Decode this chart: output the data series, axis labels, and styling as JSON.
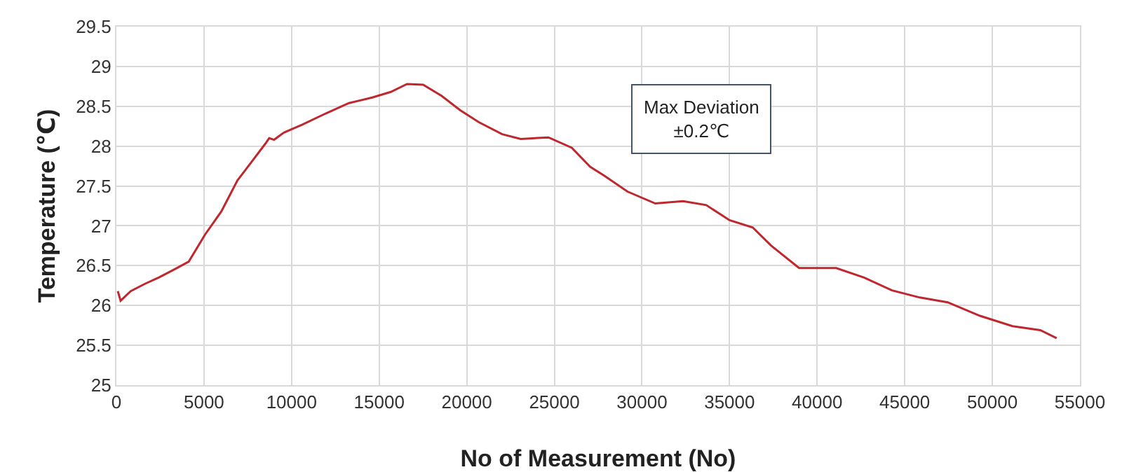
{
  "chart_data": {
    "type": "line",
    "xlabel": "No of Measurement (No)",
    "ylabel": "Temperature (℃)",
    "annotations": [
      "Max Deviation\n±0.2℃"
    ],
    "series": [
      {
        "color": "#c0272d",
        "x": [
          80,
          240,
          820,
          1610,
          2410,
          3200,
          4130,
          5060,
          5990,
          6910,
          7710,
          8500,
          8720,
          9000,
          9560,
          10620,
          11950,
          13270,
          14600,
          15660,
          16590,
          17510,
          18570,
          19630,
          20690,
          22020,
          23080,
          24660,
          25990,
          27050,
          27840,
          29170,
          30760,
          32350,
          33670,
          35000,
          36320,
          37380,
          38970,
          41090,
          42680,
          44270,
          45860,
          47450,
          49300,
          51150,
          52740,
          53670
        ],
        "values": [
          26.18,
          26.06,
          26.18,
          26.27,
          26.35,
          26.44,
          26.55,
          26.89,
          27.18,
          27.57,
          27.8,
          28.03,
          28.1,
          28.08,
          28.17,
          28.27,
          28.41,
          28.54,
          28.61,
          28.68,
          28.78,
          28.77,
          28.63,
          28.45,
          28.3,
          28.15,
          28.09,
          28.11,
          27.98,
          27.74,
          27.63,
          27.43,
          27.28,
          27.31,
          27.26,
          27.07,
          26.98,
          26.75,
          26.47,
          26.47,
          26.35,
          26.19,
          26.1,
          26.04,
          25.87,
          25.74,
          25.69,
          25.59
        ]
      }
    ],
    "xlim": [
      0,
      55000
    ],
    "xticks": [
      0,
      5000,
      10000,
      15000,
      20000,
      25000,
      30000,
      35000,
      40000,
      45000,
      50000,
      55000
    ],
    "ylim": [
      25,
      29.5
    ],
    "yticks": [
      25,
      25.5,
      26,
      26.5,
      27,
      27.5,
      28,
      28.5,
      29,
      29.5
    ],
    "grid": true,
    "marker": "none",
    "line_style": "solid"
  }
}
